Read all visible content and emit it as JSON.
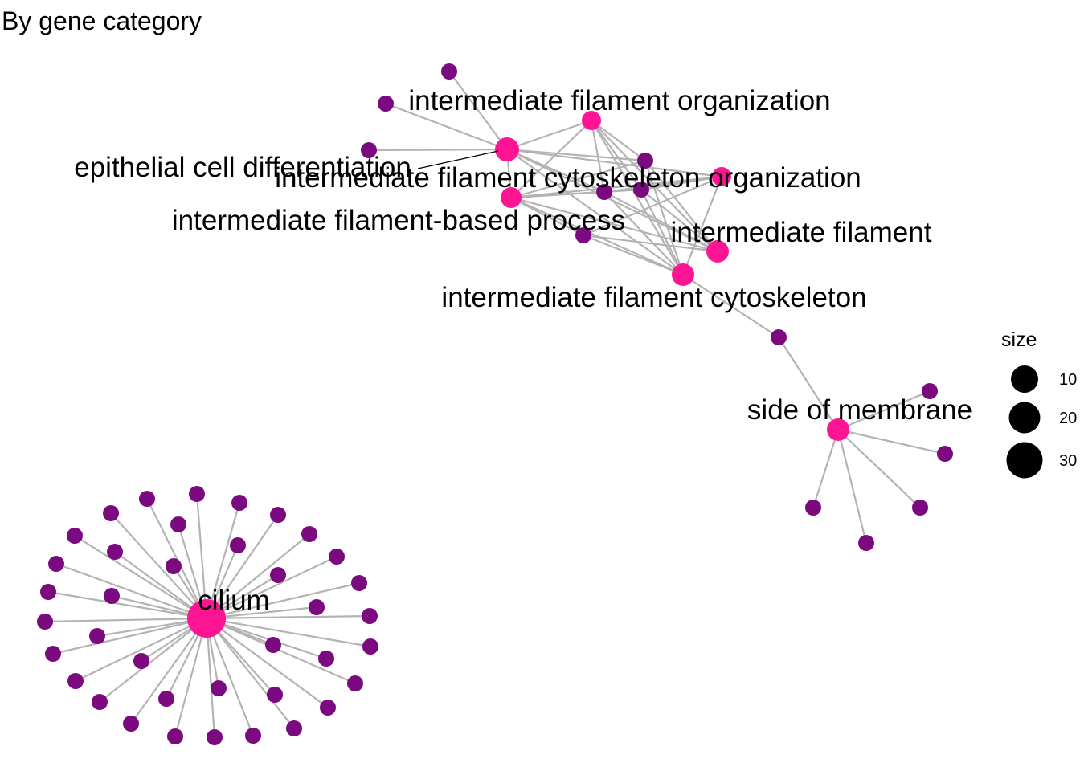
{
  "title": "By gene category",
  "colors": {
    "category": "#ff1493",
    "gene": "#7b0a80",
    "edge": "#b3b3b3",
    "legend": "#000000"
  },
  "categories": [
    {
      "id": "ifo",
      "label": "intermediate filament organization"
    },
    {
      "id": "ecd",
      "label": "epithelial cell differentiation"
    },
    {
      "id": "ifco",
      "label": "intermediate filament cytoskeleton organization"
    },
    {
      "id": "ifbp",
      "label": "intermediate filament-based process"
    },
    {
      "id": "if",
      "label": "intermediate filament"
    },
    {
      "id": "ifc",
      "label": "intermediate filament cytoskeleton"
    },
    {
      "id": "som",
      "label": "side of membrane"
    },
    {
      "id": "cil",
      "label": "cilium"
    }
  ],
  "legend": {
    "title": "size",
    "values": [
      "10",
      "20",
      "30"
    ]
  }
}
